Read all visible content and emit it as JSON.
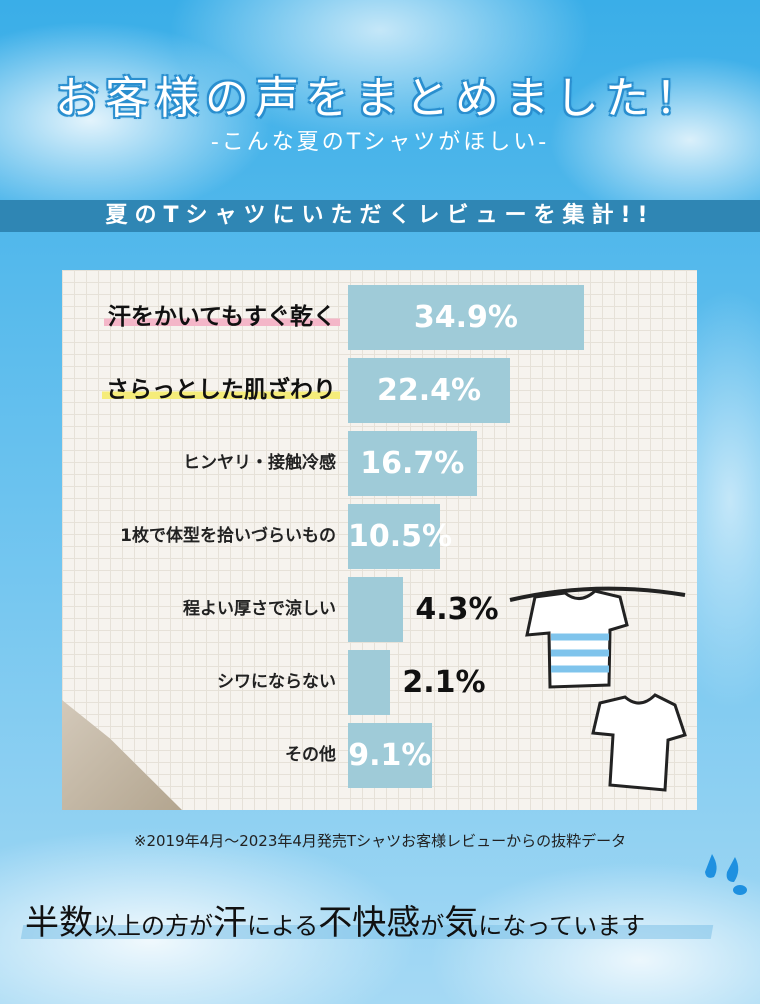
{
  "title": "お客様の声をまとめました！",
  "subtitle": "-こんな夏のTシャツがほしい-",
  "band": "夏のTシャツにいただくレビューを集計!!",
  "chart_data": {
    "type": "bar",
    "orientation": "horizontal",
    "categories": [
      "汗をかいてもすぐ乾く",
      "さらっとした肌ざわり",
      "ヒンヤリ・接触冷感",
      "1枚で体型を拾いづらいもの",
      "程よい厚さで涼しい",
      "シワにならない",
      "その他"
    ],
    "values": [
      34.9,
      22.4,
      16.7,
      10.5,
      4.3,
      2.1,
      9.1
    ],
    "value_labels": [
      "34.9%",
      "22.4%",
      "16.7%",
      "10.5%",
      "4.3%",
      "2.1%",
      "9.1%"
    ],
    "highlight_colors": [
      "#f4b6c8",
      "#f5ec7a",
      null,
      null,
      null,
      null,
      null
    ],
    "bar_color": "#9fcbd8"
  },
  "footnote": "※2019年4月～2023年4月発売Tシャツお客様レビューからの抜粋データ",
  "message": [
    {
      "t": "半数",
      "big": true
    },
    {
      "t": "以上の方が",
      "big": false
    },
    {
      "t": "汗",
      "big": true
    },
    {
      "t": "による",
      "big": false
    },
    {
      "t": "不快感",
      "big": true
    },
    {
      "t": "が",
      "big": false
    },
    {
      "t": "気",
      "big": true
    },
    {
      "t": "になっています",
      "big": false
    }
  ]
}
